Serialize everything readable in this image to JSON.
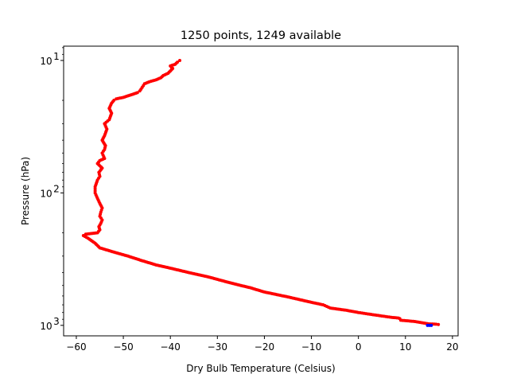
{
  "chart_data": {
    "type": "scatter",
    "title": "1250 points, 1249 available",
    "xlabel": "Dry Bulb Temperature (Celsius)",
    "ylabel": "Pressure (hPa)",
    "xlim": [
      -62.7,
      21.2
    ],
    "ylim": [
      1200,
      7.8
    ],
    "yscale": "log",
    "grid": false,
    "legend": "none",
    "xticks": [
      {
        "value": -60,
        "label": "−60"
      },
      {
        "value": -50,
        "label": "−50"
      },
      {
        "value": -40,
        "label": "−40"
      },
      {
        "value": -30,
        "label": "−30"
      },
      {
        "value": -20,
        "label": "−20"
      },
      {
        "value": -10,
        "label": "−10"
      },
      {
        "value": 0,
        "label": "0"
      },
      {
        "value": 10,
        "label": "10"
      },
      {
        "value": 20,
        "label": "20"
      }
    ],
    "yticks": [
      {
        "value": 10,
        "base": "10",
        "exp": "1"
      },
      {
        "value": 100,
        "base": "10",
        "exp": "2"
      },
      {
        "value": 1000,
        "base": "10",
        "exp": "3"
      }
    ],
    "series": [
      {
        "color": "#ff0000",
        "x": [
          17.0,
          16.5,
          15.0,
          12.0,
          9.0,
          8.8,
          8.5,
          7.0,
          5.0,
          2.0,
          0.0,
          -2.5,
          -6.0,
          -7.5,
          -10.0,
          -15.0,
          -20.0,
          -23.0,
          -25.0,
          -28.0,
          -32.0,
          -36.0,
          -40.0,
          -43.0,
          -46.0,
          -49.0,
          -52.0,
          -55.0,
          -56.0,
          -57.5,
          -58.5,
          -58.0,
          -55.5,
          -55.0,
          -55.2,
          -54.8,
          -54.5,
          -55.0,
          -54.8,
          -54.5,
          -55.0,
          -55.5,
          -56.0,
          -56.0,
          -55.5,
          -55.0,
          -55.2,
          -54.5,
          -55.5,
          -55.0,
          -54.0,
          -54.5,
          -54.0,
          -53.8,
          -54.5,
          -54.0,
          -53.5,
          -54.0,
          -53.0,
          -52.5,
          -53.0,
          -52.5,
          -52.0,
          -51.5,
          -50.0,
          -48.0,
          -47.0,
          -46.5,
          -46.0,
          -45.5,
          -44.5,
          -43.0,
          -42.0,
          -41.5,
          -40.5,
          -40.0,
          -39.5,
          -40.0,
          -39.0,
          -38.5,
          -38.0
        ],
        "y": [
          985,
          980,
          975,
          935,
          915,
          890,
          880,
          870,
          850,
          820,
          800,
          770,
          740,
          700,
          670,
          610,
          560,
          520,
          500,
          470,
          430,
          400,
          370,
          350,
          325,
          300,
          280,
          260,
          240,
          220,
          210,
          205,
          200,
          190,
          180,
          170,
          160,
          150,
          140,
          130,
          120,
          110,
          100,
          90,
          80,
          75,
          70,
          65,
          60,
          57,
          55,
          50,
          47,
          44,
          40,
          37,
          33,
          30,
          28,
          25,
          23,
          21,
          20,
          19.5,
          19,
          18,
          17.5,
          17,
          16,
          15,
          14.5,
          14,
          13.5,
          13,
          12.5,
          12,
          11.5,
          11,
          10.7,
          10.3,
          10
        ]
      },
      {
        "color": "#0000ff",
        "x": [
          14.7,
          15.1,
          15.5
        ],
        "y": [
          1000,
          1000,
          1000
        ]
      }
    ]
  }
}
